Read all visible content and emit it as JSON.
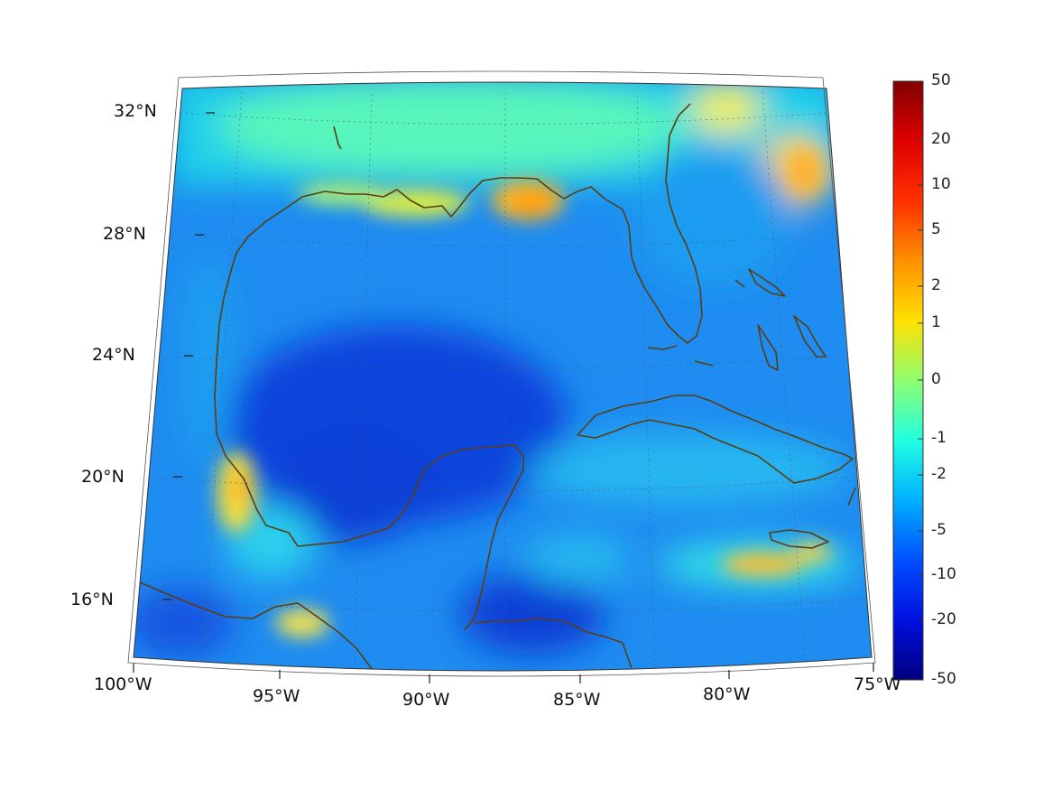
{
  "map": {
    "projection": "conic",
    "region": "Gulf of Mexico and Caribbean",
    "extent": {
      "lon_min": -100,
      "lon_max": -75,
      "lat_min": 14,
      "lat_max": 33
    },
    "grid": true,
    "coastline_color": "#5a3e12",
    "latitude_labels": [
      "16°N",
      "20°N",
      "24°N",
      "28°N",
      "32°N"
    ],
    "longitude_labels": [
      "100°W",
      "95°W",
      "90°W",
      "85°W",
      "80°W",
      "75°W"
    ]
  },
  "colorbar": {
    "colormap": "jet",
    "placement": "right",
    "tick_labels": [
      "50",
      "20",
      "10",
      "5",
      "2",
      "1",
      "0",
      "-1",
      "-2",
      "-5",
      "-10",
      "-20",
      "-50"
    ]
  }
}
